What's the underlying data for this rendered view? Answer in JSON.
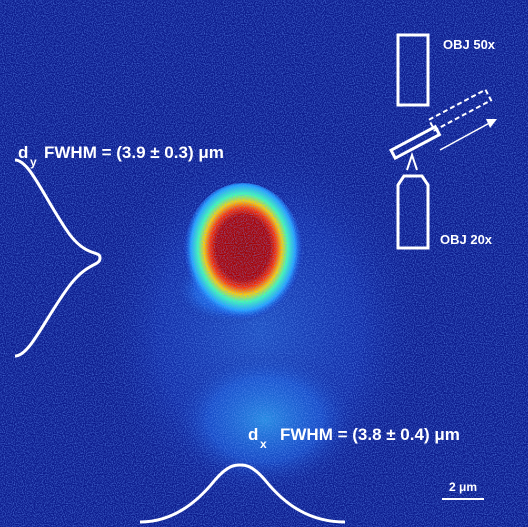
{
  "annotations": {
    "dy": {
      "symbol": "d",
      "subscript": "y",
      "text": "FWHM = (3.9 ± 0.3) μm"
    },
    "dx": {
      "symbol": "d",
      "subscript": "x",
      "text": "FWHM = (3.8 ± 0.4) μm"
    },
    "obj_top": "OBJ 50x",
    "obj_bottom": "OBJ 20x",
    "scale_bar": "2 μm"
  }
}
